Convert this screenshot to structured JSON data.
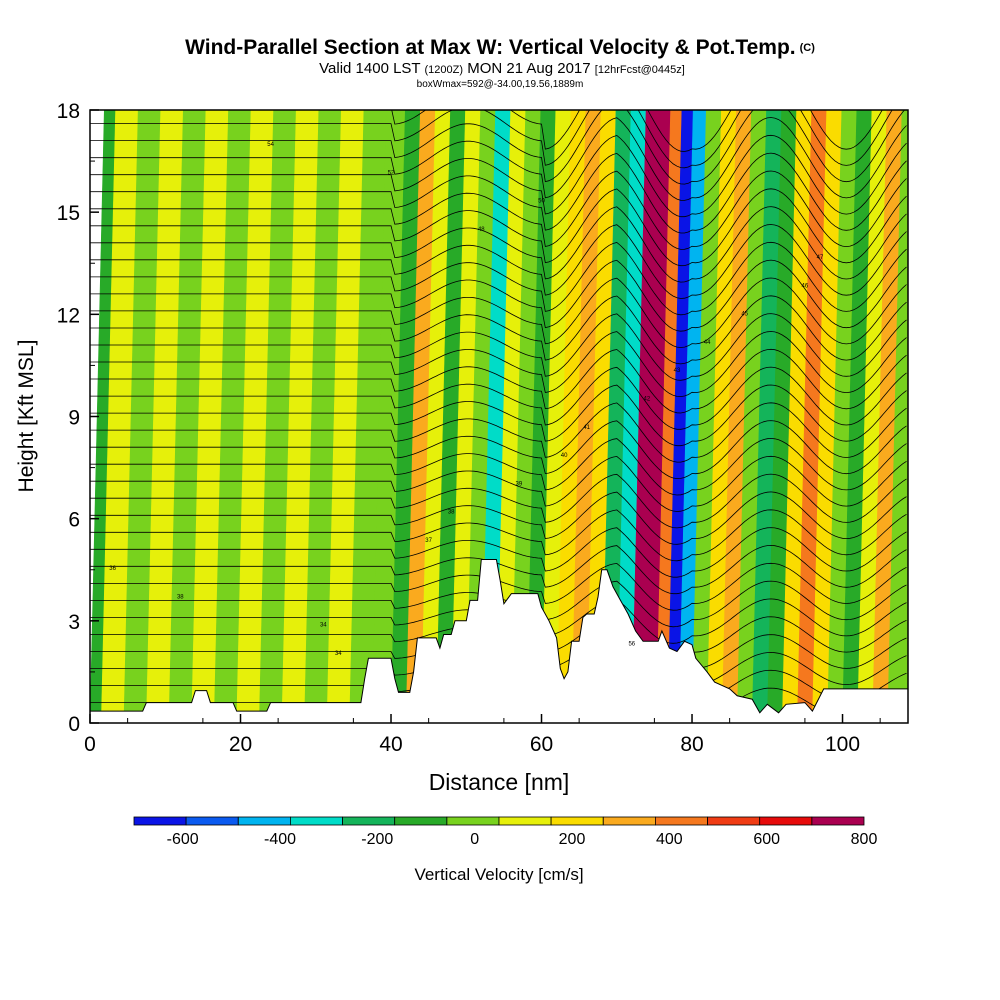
{
  "chart_data": {
    "type": "heatmap",
    "title": "Wind-Parallel Section at Max W: Vertical Velocity & Pot.Temp.",
    "title_tag": "(C)",
    "subtitle_main": "Valid 1400 LST",
    "subtitle_utc": "(1200Z)",
    "subtitle_date": "MON 21 Aug 2017",
    "subtitle_fcst": "[12hrFcst@0445z]",
    "box_info": "boxWmax=592@-34.00,19.56,1889m",
    "xlabel": "Distance [nm]",
    "ylabel": "Height [Kft MSL]",
    "xlim": [
      0,
      108.7
    ],
    "ylim": [
      0,
      18
    ],
    "xticks": [
      0,
      20,
      40,
      60,
      80,
      100
    ],
    "yticks": [
      0,
      3,
      6,
      9,
      12,
      15,
      18
    ],
    "colorbar_label": "Vertical Velocity [cm/s]",
    "colorbar_ticks": [
      -600,
      -400,
      -200,
      0,
      200,
      400,
      600,
      800
    ],
    "colorbar_levels": [
      -700,
      -600,
      -500,
      -400,
      -300,
      -200,
      -100,
      0,
      100,
      200,
      300,
      400,
      500,
      600,
      700,
      800
    ],
    "colorbar_colors": [
      "#0a14e6",
      "#0a5af0",
      "#00b4f0",
      "#00dcc8",
      "#14b45a",
      "#28aa28",
      "#78d21e",
      "#e6f00a",
      "#fadc00",
      "#faaa1e",
      "#f5781e",
      "#f03c14",
      "#e60a0a",
      "#aa0050"
    ],
    "w_columns": [
      {
        "x": 0,
        "w": -150
      },
      {
        "x": 3,
        "w": 20
      },
      {
        "x": 6,
        "w": -60
      },
      {
        "x": 9,
        "w": 30
      },
      {
        "x": 12,
        "w": -50
      },
      {
        "x": 15,
        "w": 40
      },
      {
        "x": 18,
        "w": -80
      },
      {
        "x": 21,
        "w": 60
      },
      {
        "x": 24,
        "w": -100
      },
      {
        "x": 27,
        "w": 30
      },
      {
        "x": 30,
        "w": -70
      },
      {
        "x": 33,
        "w": 60
      },
      {
        "x": 36,
        "w": -90
      },
      {
        "x": 39,
        "w": -60
      },
      {
        "x": 41,
        "w": -120
      },
      {
        "x": 43,
        "w": 250
      },
      {
        "x": 45,
        "w": 30
      },
      {
        "x": 47,
        "w": -150
      },
      {
        "x": 49,
        "w": 50
      },
      {
        "x": 51,
        "w": -100
      },
      {
        "x": 53,
        "w": -320
      },
      {
        "x": 55,
        "w": 80
      },
      {
        "x": 57,
        "w": -100
      },
      {
        "x": 59,
        "w": -130
      },
      {
        "x": 61,
        "w": 10
      },
      {
        "x": 63,
        "w": 120
      },
      {
        "x": 65,
        "w": 230
      },
      {
        "x": 67,
        "w": 130
      },
      {
        "x": 69,
        "w": -250
      },
      {
        "x": 71,
        "w": -350
      },
      {
        "x": 73,
        "w": 620
      },
      {
        "x": 74.5,
        "w": 760
      },
      {
        "x": 76,
        "w": 300
      },
      {
        "x": 77.5,
        "w": -640
      },
      {
        "x": 79,
        "w": -420
      },
      {
        "x": 81,
        "w": -100
      },
      {
        "x": 83,
        "w": 110
      },
      {
        "x": 85,
        "w": 230
      },
      {
        "x": 87,
        "w": -20
      },
      {
        "x": 89,
        "w": -300
      },
      {
        "x": 91,
        "w": -150
      },
      {
        "x": 93,
        "w": 160
      },
      {
        "x": 95,
        "w": 370
      },
      {
        "x": 97,
        "w": 180
      },
      {
        "x": 99,
        "w": -10
      },
      {
        "x": 101,
        "w": -200
      },
      {
        "x": 103,
        "w": 40
      },
      {
        "x": 105,
        "w": 210
      },
      {
        "x": 107,
        "w": -30
      },
      {
        "x": 108.7,
        "w": -60
      }
    ],
    "terrain": [
      [
        0,
        0.35
      ],
      [
        7,
        0.35
      ],
      [
        7.5,
        0.6
      ],
      [
        13.5,
        0.6
      ],
      [
        14,
        0.95
      ],
      [
        15.5,
        0.95
      ],
      [
        16,
        0.6
      ],
      [
        19,
        0.6
      ],
      [
        19.5,
        0.35
      ],
      [
        23.5,
        0.35
      ],
      [
        24,
        0.6
      ],
      [
        36,
        0.6
      ],
      [
        36.5,
        1.3
      ],
      [
        37,
        1.9
      ],
      [
        40,
        1.9
      ],
      [
        40.5,
        1.3
      ],
      [
        41,
        0.9
      ],
      [
        42.5,
        0.9
      ],
      [
        43,
        1.5
      ],
      [
        43.5,
        2.5
      ],
      [
        46,
        2.5
      ],
      [
        46.5,
        2.2
      ],
      [
        47,
        2.6
      ],
      [
        48,
        2.6
      ],
      [
        48.5,
        3.0
      ],
      [
        50,
        3.0
      ],
      [
        50.5,
        3.6
      ],
      [
        51.5,
        3.6
      ],
      [
        52,
        4.8
      ],
      [
        54,
        4.8
      ],
      [
        54.5,
        4.2
      ],
      [
        55,
        3.5
      ],
      [
        56,
        3.8
      ],
      [
        57,
        3.8
      ],
      [
        59.5,
        3.8
      ],
      [
        60,
        3.4
      ],
      [
        61,
        3.0
      ],
      [
        62,
        2.5
      ],
      [
        62.5,
        1.6
      ],
      [
        63,
        1.3
      ],
      [
        63.5,
        1.5
      ],
      [
        64,
        2.4
      ],
      [
        65,
        2.4
      ],
      [
        65.5,
        3.1
      ],
      [
        66,
        3.2
      ],
      [
        67,
        3.2
      ],
      [
        67.5,
        3.7
      ],
      [
        68,
        4.5
      ],
      [
        68.7,
        4.5
      ],
      [
        69.5,
        4.0
      ],
      [
        70.5,
        3.6
      ],
      [
        71.5,
        3.2
      ],
      [
        72.5,
        2.7
      ],
      [
        73.5,
        2.4
      ],
      [
        75.5,
        2.4
      ],
      [
        76,
        2.7
      ],
      [
        77,
        2.2
      ],
      [
        78,
        2.1
      ],
      [
        79,
        2.4
      ],
      [
        80,
        2.3
      ],
      [
        80.5,
        1.9
      ],
      [
        82,
        1.5
      ],
      [
        83,
        1.2
      ],
      [
        85,
        1.0
      ],
      [
        86,
        0.8
      ],
      [
        88,
        0.7
      ],
      [
        89,
        0.3
      ],
      [
        90,
        0.55
      ],
      [
        91.5,
        0.3
      ],
      [
        92.5,
        0.55
      ],
      [
        95,
        0.6
      ],
      [
        96,
        0.35
      ],
      [
        97.5,
        1.0
      ],
      [
        106,
        1.0
      ],
      [
        108.7,
        1.0
      ]
    ],
    "theta_labels": [
      "34",
      "34",
      "38",
      "36",
      "37",
      "38",
      "39",
      "40",
      "41",
      "42",
      "43",
      "44",
      "45",
      "46",
      "47",
      "48",
      "50",
      "52",
      "54",
      "56"
    ]
  }
}
